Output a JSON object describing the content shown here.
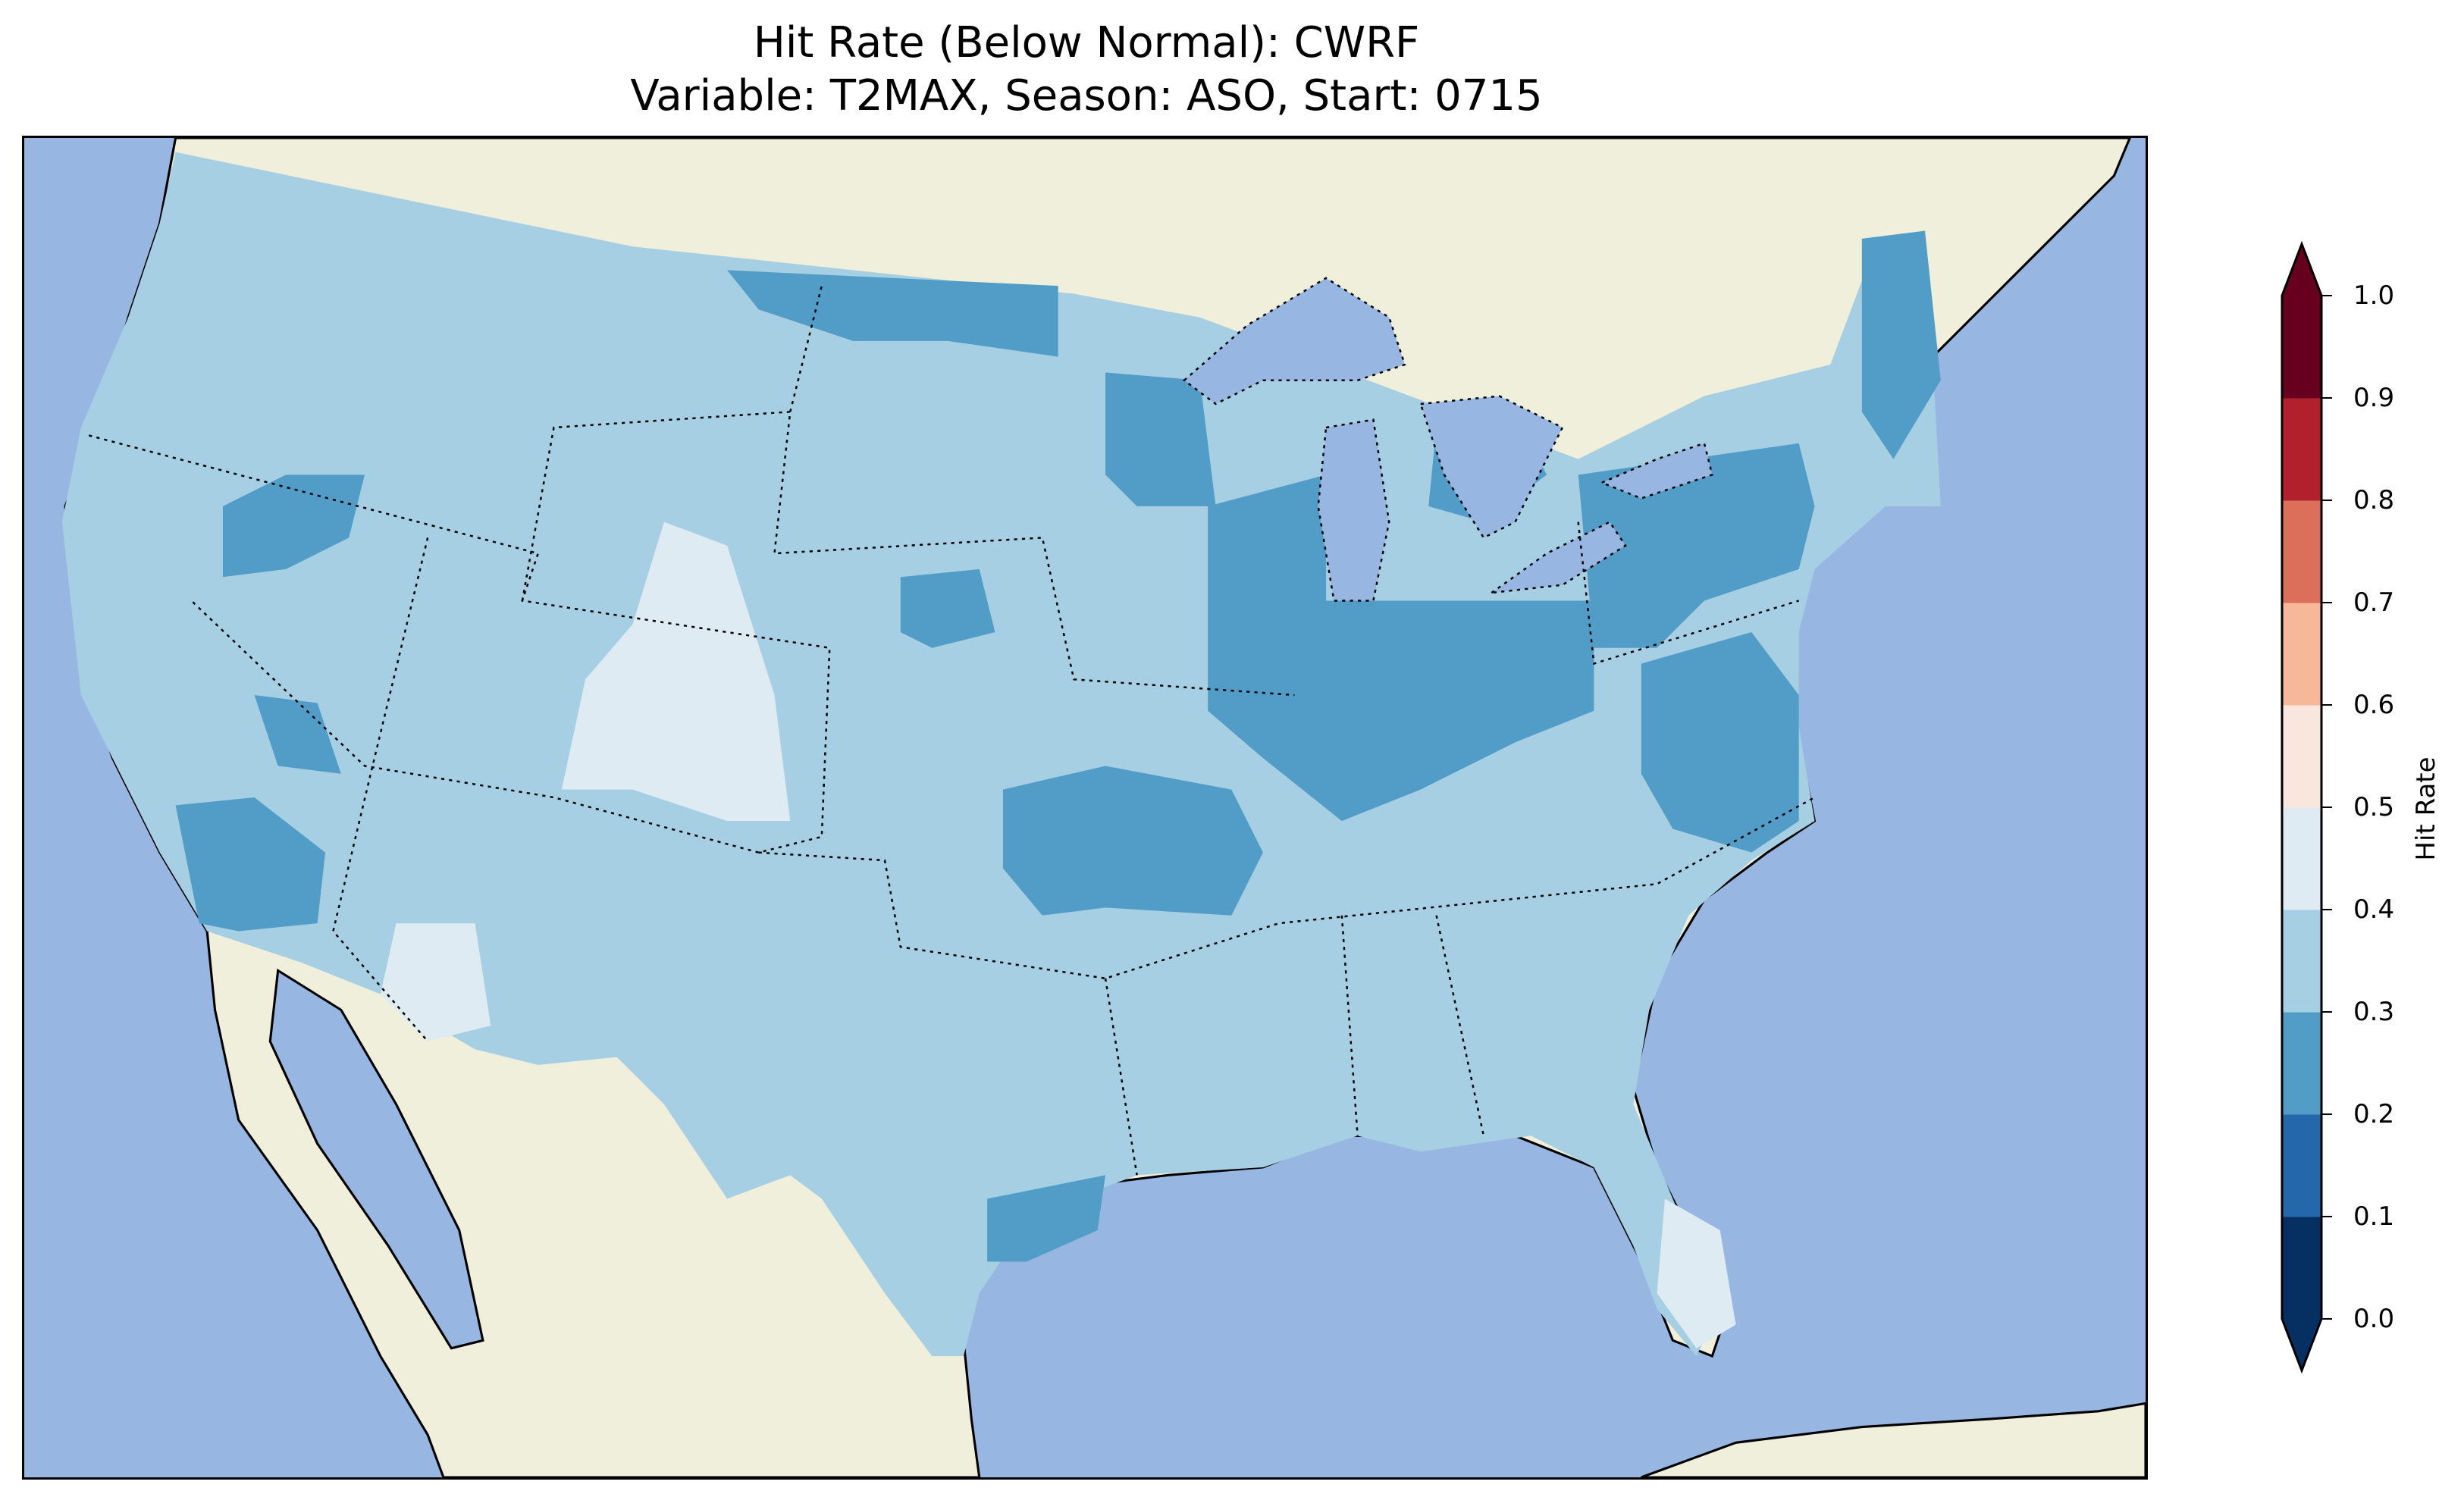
{
  "title": {
    "line1": "Hit Rate (Below Normal): CWRF",
    "line2": "Variable: T2MAX, Season: ASO, Start: 0715"
  },
  "map": {
    "colors": {
      "ocean": "#97b6e1",
      "land": "#f0efdc",
      "class_0_2_0_3": "#529dc7",
      "class_0_3_0_4": "#a6cfe3",
      "class_0_4_0_5": "#deebf2"
    }
  },
  "colorbar": {
    "label": "Hit Rate",
    "ticks": [
      "0.0",
      "0.1",
      "0.2",
      "0.3",
      "0.4",
      "0.5",
      "0.6",
      "0.7",
      "0.8",
      "0.9",
      "1.0"
    ],
    "colors": [
      "#053061",
      "#2467ab",
      "#529dc7",
      "#a6cfe3",
      "#deebf2",
      "#f9e6dd",
      "#f6b899",
      "#dc6f59",
      "#b2202d",
      "#67001f"
    ],
    "extend": "both"
  }
}
